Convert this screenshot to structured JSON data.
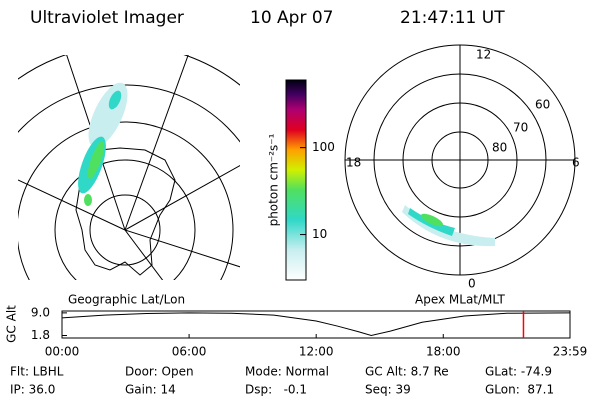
{
  "header": {
    "title": "Ultraviolet Imager",
    "date": "10 Apr 07",
    "time": "21:47:11 UT"
  },
  "left_map": {
    "label": "Geographic Lat/Lon"
  },
  "right_map": {
    "label": "Apex MLat/MLT",
    "mlt_labels": [
      "12",
      "18",
      "6",
      "0"
    ],
    "mlat_labels": [
      "60",
      "70",
      "80"
    ]
  },
  "colorbar": {
    "label": "photon cm⁻²s⁻¹",
    "lim": [
      3,
      600
    ],
    "ticks": [
      10,
      100
    ],
    "log": true
  },
  "chart_data": {
    "type": "line",
    "ylabel": "GC Alt",
    "x": [
      0,
      2,
      4,
      6,
      8,
      10,
      12,
      13,
      14,
      14.6,
      15.5,
      17,
      19,
      21,
      23.983
    ],
    "values": [
      7.4,
      8.3,
      8.8,
      9.0,
      8.9,
      8.3,
      6.4,
      4.8,
      3.0,
      1.8,
      3.2,
      6.0,
      8.0,
      8.9,
      9.0
    ],
    "color": "#000000",
    "xlim": [
      0,
      23.983
    ],
    "xticks": [
      {
        "value": 0,
        "label": "00:00"
      },
      {
        "value": 6,
        "label": "06:00"
      },
      {
        "value": 12,
        "label": "12:00"
      },
      {
        "value": 18,
        "label": "18:00"
      },
      {
        "value": 23.983,
        "label": "23:59"
      }
    ],
    "ylim": [
      1.0,
      9.6
    ],
    "yticks": [
      {
        "value": 9,
        "label": "9.0"
      },
      1.8
    ],
    "marker": {
      "value": 21.786,
      "color": "#ff0000"
    }
  },
  "footer": {
    "rows": [
      [
        "Flt: LBHL",
        "Door: Open",
        "Mode: Normal",
        "GC Alt: 8.7 Re",
        "GLat: -74.9"
      ],
      [
        "IP: 36.0",
        "Gain: 14",
        "Dsp:   -0.1",
        "Seq: 39",
        "GLon:  87.1"
      ]
    ]
  }
}
